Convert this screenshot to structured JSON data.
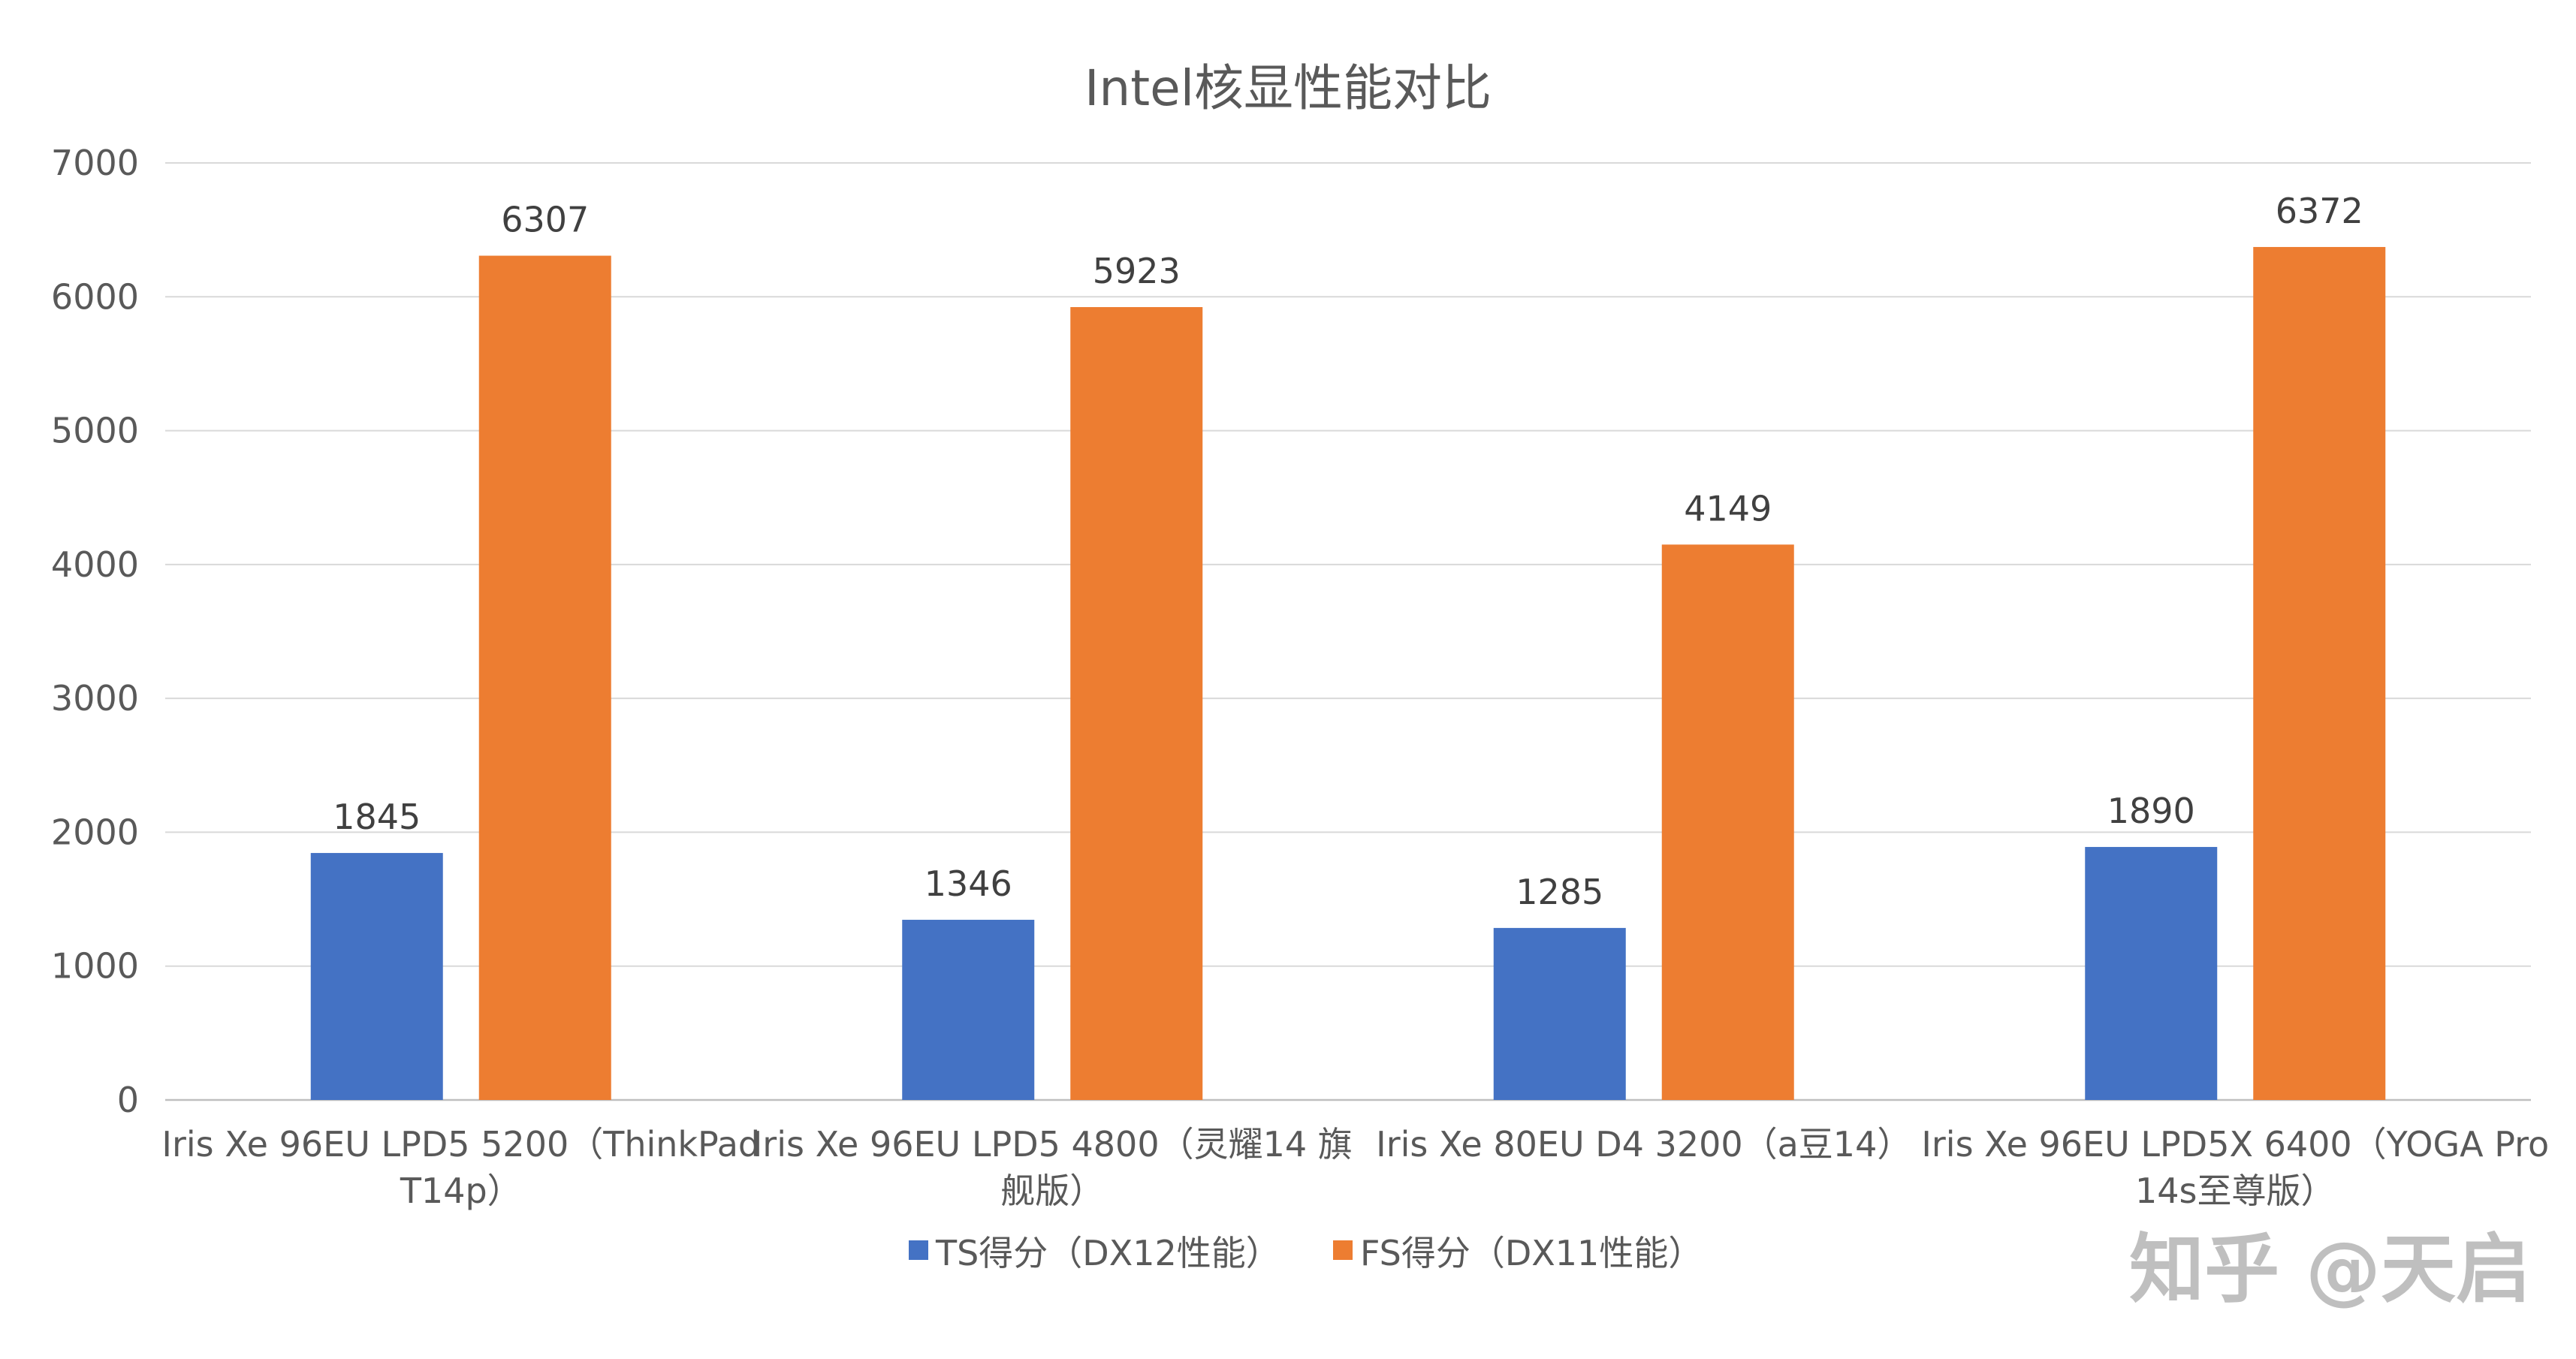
{
  "chart_data": {
    "type": "bar",
    "title": "Intel核显性能对比",
    "categories": [
      [
        "Iris Xe 96EU LPD5 5200（ThinkPad",
        "T14p）"
      ],
      [
        "Iris Xe 96EU LPD5 4800（灵耀14 旗",
        "舰版）"
      ],
      [
        "Iris Xe 80EU D4 3200（a豆14）"
      ],
      [
        "Iris Xe 96EU LPD5X 6400（YOGA Pro",
        "14s至尊版）"
      ]
    ],
    "series": [
      {
        "name": "TS得分（DX12性能）",
        "color": "#4472c4",
        "values": [
          1845,
          1346,
          1285,
          1890
        ]
      },
      {
        "name": "FS得分（DX11性能）",
        "color": "#ed7d31",
        "values": [
          6307,
          5923,
          4149,
          6372
        ]
      }
    ],
    "ylim": [
      0,
      7000
    ],
    "yticks": [
      0,
      1000,
      2000,
      3000,
      4000,
      5000,
      6000,
      7000
    ],
    "grid": true,
    "legend": "bottom-center"
  },
  "watermark": "知乎 @天启"
}
